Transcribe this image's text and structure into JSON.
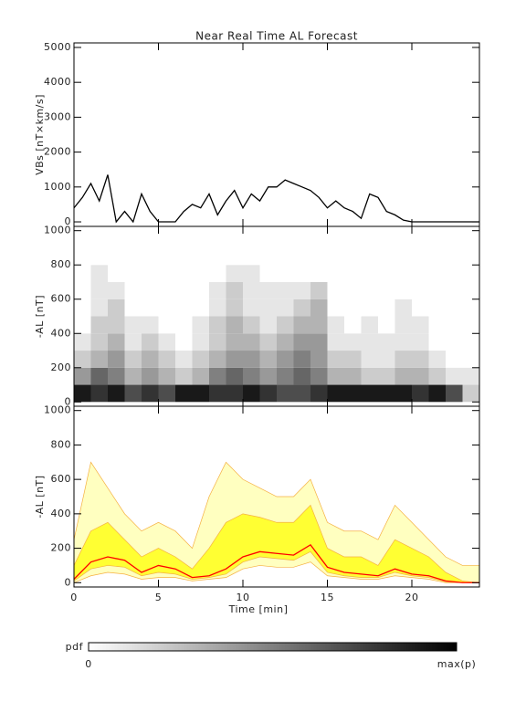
{
  "chart_data": [
    {
      "type": "line",
      "title": "Near Real Time AL Forecast",
      "ylabel": "VBs [nT×km/s]",
      "x": [
        0,
        0.5,
        1,
        1.5,
        2,
        2.5,
        3,
        3.5,
        4,
        4.5,
        5,
        5.5,
        6,
        6.5,
        7,
        7.5,
        8,
        8.5,
        9,
        9.5,
        10,
        10.5,
        11,
        11.5,
        12,
        12.5,
        13,
        13.5,
        14,
        14.5,
        15,
        15.5,
        16,
        16.5,
        17,
        17.5,
        18,
        18.5,
        19,
        19.5,
        20,
        20.5,
        21,
        21.5,
        22,
        22.5,
        23,
        23.5,
        24
      ],
      "series": [
        {
          "color": "#000000",
          "values": [
            400,
            700,
            1100,
            600,
            1350,
            0,
            300,
            0,
            800,
            300,
            0,
            0,
            0,
            300,
            500,
            400,
            800,
            200,
            600,
            900,
            400,
            800,
            600,
            1000,
            1000,
            1200,
            1100,
            1000,
            900,
            700,
            400,
            600,
            400,
            300,
            100,
            800,
            700,
            300,
            200,
            50,
            0,
            0,
            0,
            0,
            0,
            0,
            0,
            0,
            0
          ]
        }
      ],
      "xlim": [
        0,
        24
      ],
      "xticks": [
        0,
        5,
        10,
        15,
        20
      ],
      "ylim": [
        -130,
        5130
      ],
      "yticks": [
        0,
        1000,
        2000,
        3000,
        4000,
        5000
      ]
    },
    {
      "type": "heatmap",
      "ylabel": "-AL [nT]",
      "xbins": [
        0,
        1,
        2,
        3,
        4,
        5,
        6,
        7,
        8,
        9,
        10,
        11,
        12,
        13,
        14,
        15,
        16,
        17,
        18,
        19,
        20,
        21,
        22,
        23,
        24
      ],
      "ybins": [
        0,
        100,
        200,
        300,
        400,
        500,
        600,
        700,
        800,
        900,
        1000
      ],
      "values": [
        [
          0.9,
          0.8,
          0.9,
          0.7,
          0.8,
          0.7,
          0.9,
          0.9,
          0.8,
          0.8,
          0.9,
          0.8,
          0.7,
          0.7,
          0.8,
          0.9,
          0.9,
          0.9,
          0.9,
          0.9,
          0.8,
          0.9,
          0.7,
          0.2
        ],
        [
          0.4,
          0.6,
          0.5,
          0.3,
          0.4,
          0.3,
          0.2,
          0.3,
          0.5,
          0.6,
          0.5,
          0.4,
          0.5,
          0.6,
          0.5,
          0.3,
          0.3,
          0.2,
          0.2,
          0.3,
          0.3,
          0.2,
          0.1,
          0.1
        ],
        [
          0.2,
          0.3,
          0.4,
          0.2,
          0.3,
          0.2,
          0.1,
          0.2,
          0.3,
          0.4,
          0.4,
          0.3,
          0.4,
          0.5,
          0.4,
          0.2,
          0.2,
          0.1,
          0.1,
          0.2,
          0.2,
          0.1,
          0,
          0
        ],
        [
          0.1,
          0.2,
          0.3,
          0.1,
          0.2,
          0.1,
          0,
          0.1,
          0.2,
          0.3,
          0.3,
          0.2,
          0.3,
          0.4,
          0.4,
          0.1,
          0.1,
          0.1,
          0.1,
          0.1,
          0.1,
          0,
          0,
          0
        ],
        [
          0,
          0.2,
          0.2,
          0.1,
          0.1,
          0,
          0,
          0.1,
          0.2,
          0.3,
          0.2,
          0.1,
          0.2,
          0.3,
          0.3,
          0.1,
          0,
          0.1,
          0,
          0.1,
          0.1,
          0,
          0,
          0
        ],
        [
          0,
          0.1,
          0.2,
          0,
          0,
          0,
          0,
          0,
          0.1,
          0.2,
          0.1,
          0.1,
          0.1,
          0.2,
          0.3,
          0,
          0,
          0,
          0,
          0.1,
          0,
          0,
          0,
          0
        ],
        [
          0,
          0.1,
          0.1,
          0,
          0,
          0,
          0,
          0,
          0.1,
          0.2,
          0.1,
          0.1,
          0.1,
          0.1,
          0.2,
          0,
          0,
          0,
          0,
          0,
          0,
          0,
          0,
          0
        ],
        [
          0,
          0.1,
          0,
          0,
          0,
          0,
          0,
          0,
          0,
          0.1,
          0.1,
          0,
          0,
          0,
          0,
          0,
          0,
          0,
          0,
          0,
          0,
          0,
          0,
          0
        ],
        [
          0,
          0,
          0,
          0,
          0,
          0,
          0,
          0,
          0,
          0,
          0,
          0,
          0,
          0,
          0,
          0,
          0,
          0,
          0,
          0,
          0,
          0,
          0,
          0
        ],
        [
          0,
          0,
          0,
          0,
          0,
          0,
          0,
          0,
          0,
          0,
          0,
          0,
          0,
          0,
          0,
          0,
          0,
          0,
          0,
          0,
          0,
          0,
          0,
          0
        ]
      ],
      "colorbar": {
        "label": "pdf",
        "min_label": "0",
        "max_label": "max(p)"
      },
      "xlim": [
        0,
        24
      ],
      "xticks": [
        0,
        5,
        10,
        15,
        20
      ],
      "ylim": [
        -25,
        1025
      ],
      "yticks": [
        0,
        200,
        400,
        600,
        800,
        1000
      ]
    },
    {
      "type": "band",
      "ylabel": "-AL [nT]",
      "xlabel": "Time [min]",
      "x": [
        0,
        1,
        2,
        3,
        4,
        5,
        6,
        7,
        8,
        9,
        10,
        11,
        12,
        13,
        14,
        15,
        16,
        17,
        18,
        19,
        20,
        21,
        22,
        23,
        24
      ],
      "bands": [
        {
          "color": "#ffffc0",
          "edge_color": "#f5b041",
          "lower": [
            0,
            40,
            60,
            50,
            20,
            30,
            30,
            10,
            20,
            30,
            80,
            100,
            90,
            90,
            120,
            40,
            30,
            20,
            20,
            40,
            30,
            20,
            0,
            0,
            0
          ],
          "upper": [
            250,
            700,
            550,
            400,
            300,
            350,
            300,
            200,
            500,
            700,
            600,
            550,
            500,
            500,
            600,
            350,
            300,
            300,
            250,
            450,
            350,
            250,
            150,
            100,
            100
          ]
        },
        {
          "color": "#ffff33",
          "edge_color": "#f5b041",
          "lower": [
            10,
            80,
            100,
            90,
            40,
            60,
            50,
            20,
            30,
            50,
            120,
            150,
            140,
            130,
            180,
            60,
            40,
            30,
            30,
            60,
            40,
            30,
            5,
            0,
            0
          ],
          "upper": [
            100,
            300,
            350,
            250,
            150,
            200,
            150,
            80,
            200,
            350,
            400,
            380,
            350,
            350,
            450,
            200,
            150,
            150,
            100,
            250,
            200,
            150,
            60,
            10,
            0
          ]
        }
      ],
      "series": [
        {
          "color": "#ff0000",
          "values": [
            20,
            120,
            150,
            130,
            60,
            100,
            80,
            30,
            40,
            80,
            150,
            180,
            170,
            160,
            220,
            90,
            60,
            50,
            40,
            80,
            50,
            40,
            10,
            0,
            0
          ]
        }
      ],
      "xlim": [
        0,
        24
      ],
      "xticks": [
        0,
        5,
        10,
        15,
        20
      ],
      "ylim": [
        -25,
        1025
      ],
      "yticks": [
        0,
        200,
        400,
        600,
        800,
        1000
      ]
    }
  ]
}
